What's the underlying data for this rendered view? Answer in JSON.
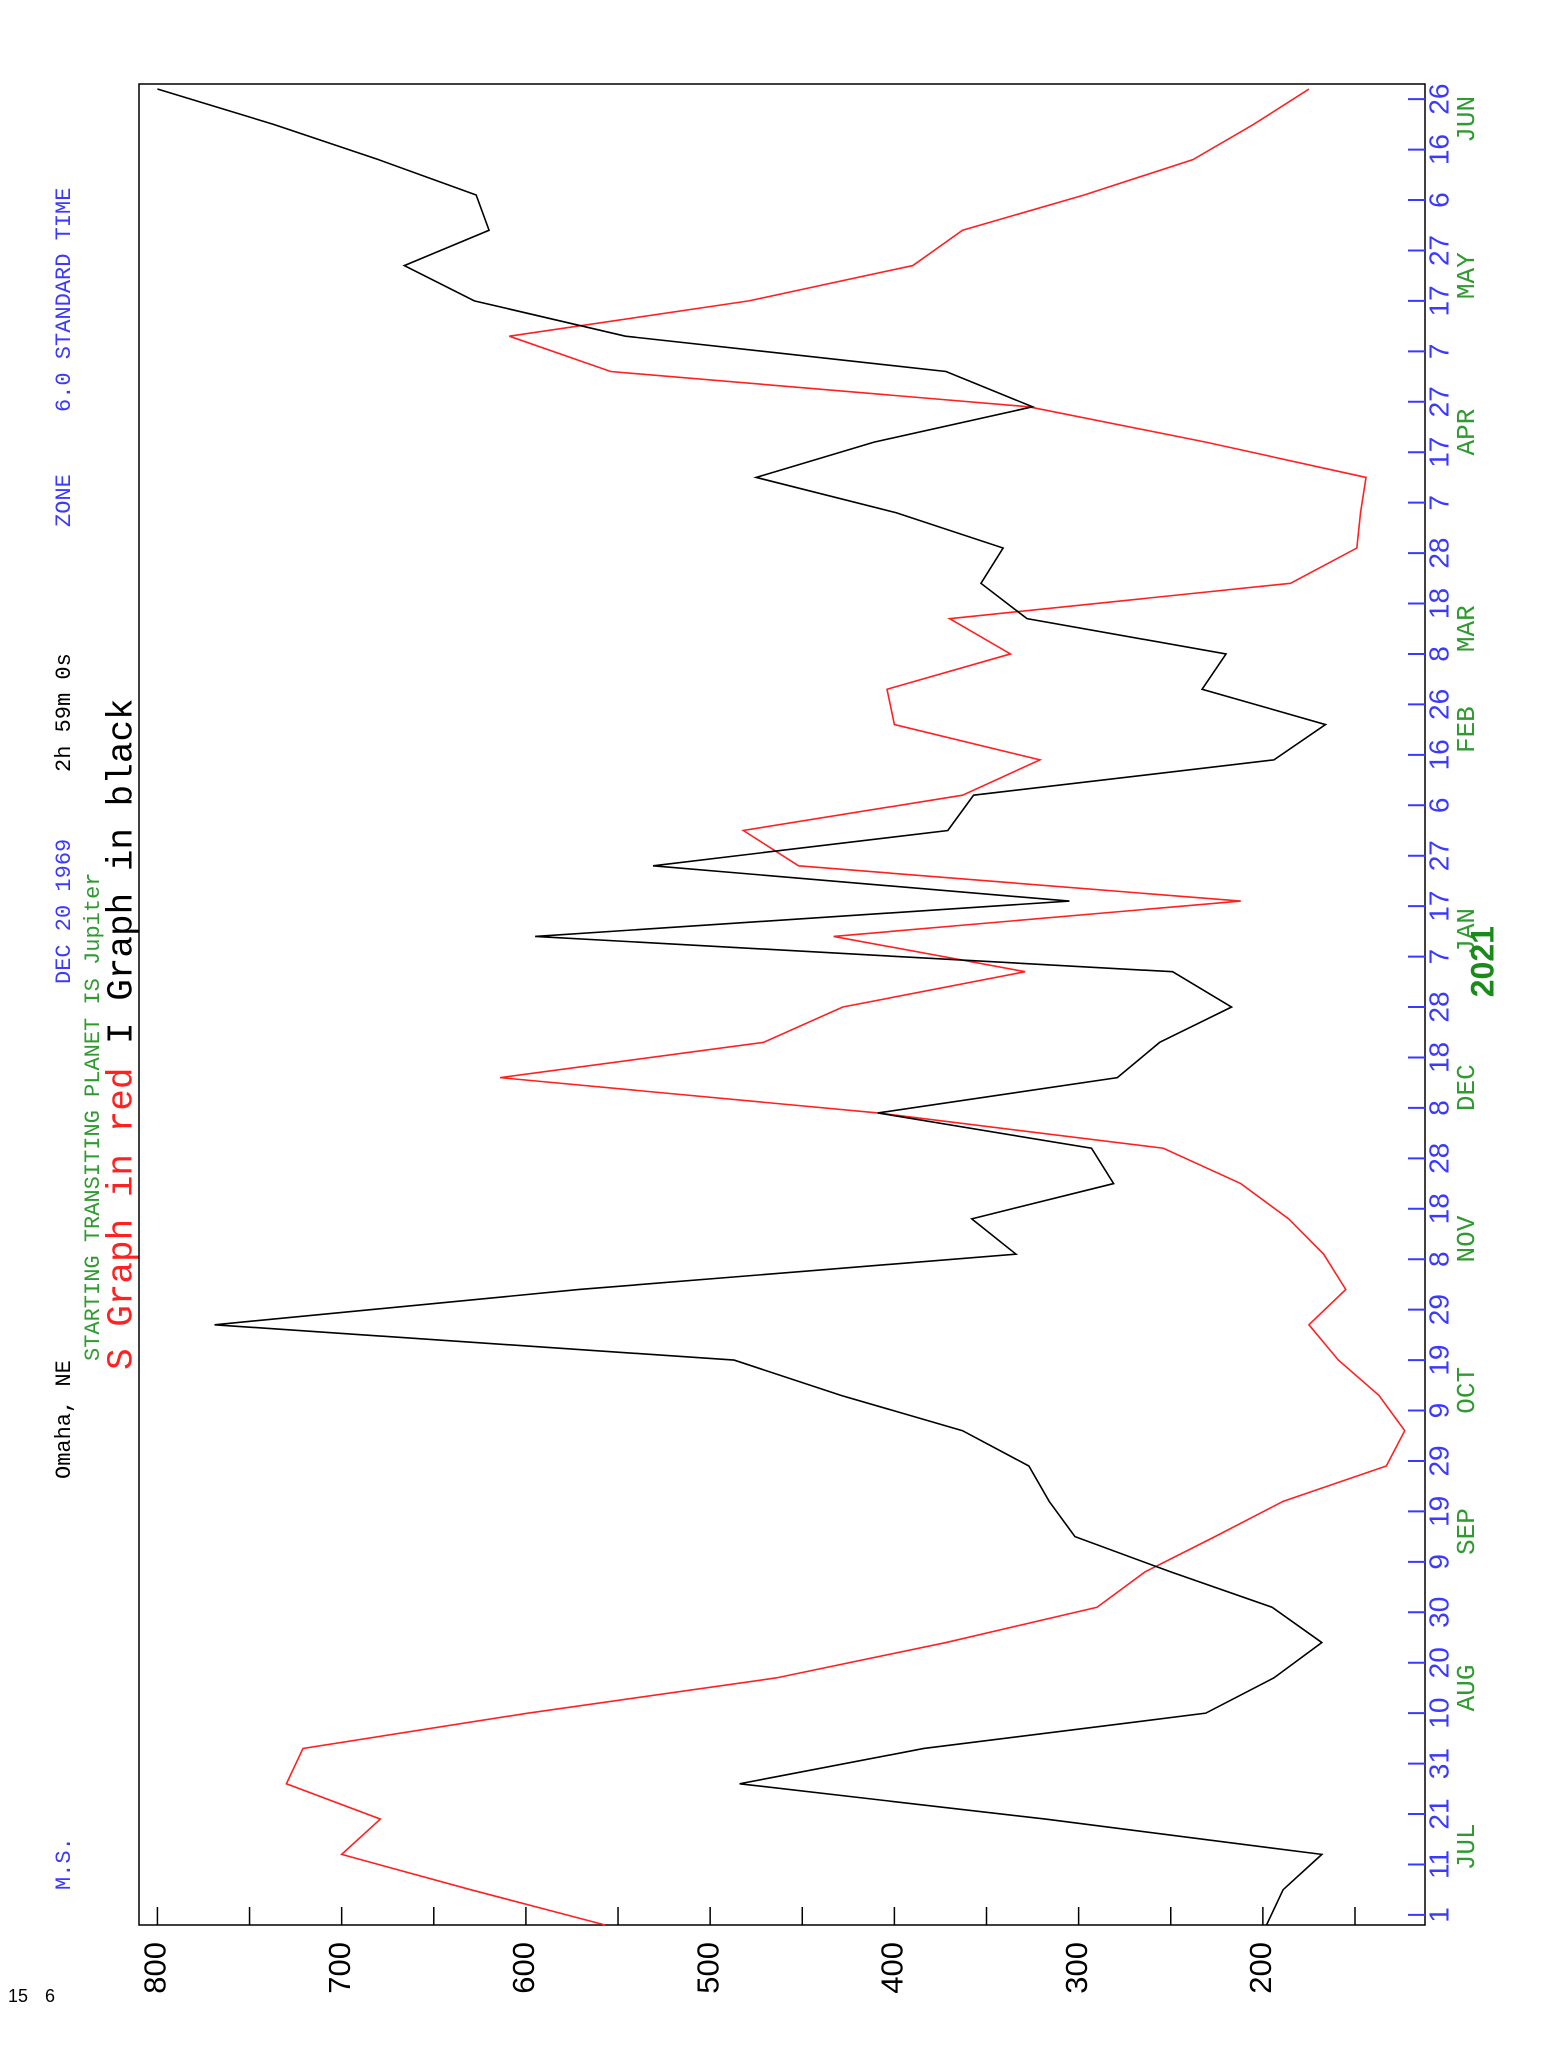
{
  "chart_data": {
    "type": "line",
    "corner_text": [
      "15",
      "6"
    ],
    "header": {
      "station": "M.S.",
      "location": "Omaha, NE",
      "date": "DEC 20 1969",
      "time": "2h 59m 0s",
      "zone_label": "ZONE",
      "zone": "6.0 STANDARD TIME",
      "planet_line": "STARTING TRANSITING PLANET IS Jupiter"
    },
    "x": [
      -2,
      5,
      12,
      19,
      26,
      33,
      40,
      47,
      54,
      61,
      68,
      75,
      82,
      89,
      96,
      103,
      110,
      117,
      124,
      131,
      138,
      145,
      152,
      159,
      166,
      173,
      180,
      187,
      194,
      201,
      208,
      215,
      222,
      229,
      236,
      243,
      250,
      257,
      264,
      271,
      278,
      285,
      292,
      299,
      306,
      313,
      320,
      327,
      334,
      341,
      348,
      355,
      362
    ],
    "series": [
      {
        "name": "S Graph in red",
        "color": "#ff2020",
        "values": [
          557,
          630,
          700,
          679,
          730,
          721,
          599,
          464,
          372,
          290,
          264,
          226,
          189,
          133,
          123,
          137,
          159,
          175,
          155,
          167,
          186,
          212,
          254,
          409,
          614,
          471,
          428,
          329,
          433,
          212,
          452,
          482,
          363,
          321,
          400,
          404,
          337,
          370,
          185,
          149,
          147,
          144,
          231,
          327,
          554,
          609,
          479,
          390,
          363,
          297,
          238,
          205,
          175
        ]
      },
      {
        "name": "I Graph in black",
        "color": "#000000",
        "values": [
          198,
          189,
          168,
          318,
          484,
          384,
          231,
          194,
          168,
          195,
          250,
          302,
          316,
          327,
          363,
          429,
          487,
          769,
          571,
          334,
          358,
          281,
          293,
          409,
          279,
          256,
          217,
          249,
          595,
          305,
          531,
          371,
          357,
          194,
          166,
          233,
          220,
          328,
          353,
          341,
          399,
          475,
          411,
          325,
          372,
          546,
          628,
          666,
          620,
          627,
          680,
          737,
          800
        ]
      }
    ],
    "xlim": [
      -2,
      363
    ],
    "xticks": [
      {
        "value": 0,
        "label": "1"
      },
      {
        "value": 10,
        "label": "11"
      },
      {
        "value": 20,
        "label": "21"
      },
      {
        "value": 30,
        "label": "31"
      },
      {
        "value": 40,
        "label": "10"
      },
      {
        "value": 50,
        "label": "20"
      },
      {
        "value": 60,
        "label": "30"
      },
      {
        "value": 70,
        "label": "9"
      },
      {
        "value": 80,
        "label": "19"
      },
      {
        "value": 90,
        "label": "29"
      },
      {
        "value": 100,
        "label": "9"
      },
      {
        "value": 110,
        "label": "19"
      },
      {
        "value": 120,
        "label": "29"
      },
      {
        "value": 130,
        "label": "8"
      },
      {
        "value": 140,
        "label": "18"
      },
      {
        "value": 150,
        "label": "28"
      },
      {
        "value": 160,
        "label": "8"
      },
      {
        "value": 170,
        "label": "18"
      },
      {
        "value": 180,
        "label": "28"
      },
      {
        "value": 190,
        "label": "7"
      },
      {
        "value": 200,
        "label": "17"
      },
      {
        "value": 210,
        "label": "27"
      },
      {
        "value": 220,
        "label": "6"
      },
      {
        "value": 230,
        "label": "16"
      },
      {
        "value": 240,
        "label": "26"
      },
      {
        "value": 250,
        "label": "8"
      },
      {
        "value": 260,
        "label": "18"
      },
      {
        "value": 270,
        "label": "28"
      },
      {
        "value": 280,
        "label": "7"
      },
      {
        "value": 290,
        "label": "17"
      },
      {
        "value": 300,
        "label": "27"
      },
      {
        "value": 310,
        "label": "7"
      },
      {
        "value": 320,
        "label": "17"
      },
      {
        "value": 330,
        "label": "27"
      },
      {
        "value": 340,
        "label": "6"
      },
      {
        "value": 350,
        "label": "16"
      },
      {
        "value": 360,
        "label": "26"
      }
    ],
    "month_labels": [
      {
        "value": 13.5,
        "label": "JUL"
      },
      {
        "value": 45,
        "label": "AUG"
      },
      {
        "value": 76,
        "label": "SEP"
      },
      {
        "value": 104,
        "label": "OCT"
      },
      {
        "value": 134,
        "label": "NOV"
      },
      {
        "value": 164,
        "label": "DEC"
      },
      {
        "value": 195,
        "label": "JAN"
      },
      {
        "value": 235,
        "label": "FEB"
      },
      {
        "value": 255,
        "label": "MAR"
      },
      {
        "value": 294,
        "label": "APR"
      },
      {
        "value": 325,
        "label": "MAY"
      },
      {
        "value": 356,
        "label": "JUN"
      }
    ],
    "year_label": {
      "value": 189,
      "label": "2021"
    },
    "ylim": [
      112,
      810
    ],
    "yticks": [
      200,
      300,
      400,
      500,
      600,
      700,
      800
    ],
    "minor_yticks": [
      150,
      250,
      350,
      450,
      550,
      650,
      750
    ]
  }
}
